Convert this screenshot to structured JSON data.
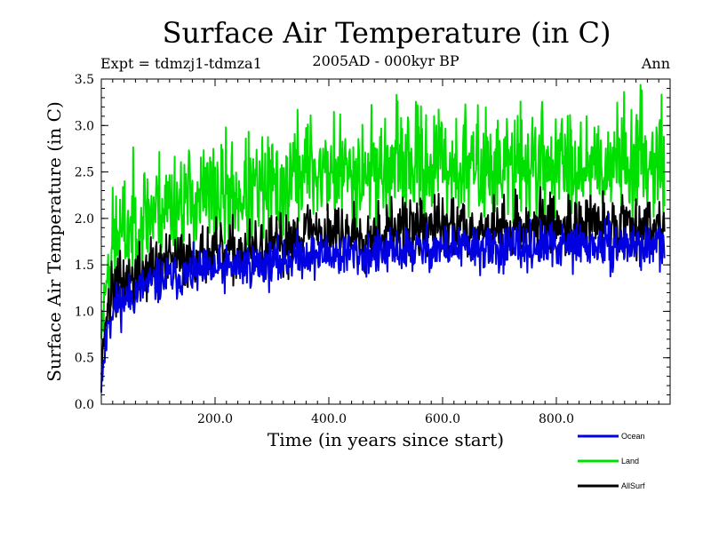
{
  "chart_data": {
    "type": "line",
    "title": "Surface Air Temperature (in C)",
    "subtitle": "2005AD - 000kyr BP",
    "left_annotation": "Expt = tdmzj1-tdmza1",
    "right_annotation": "Ann",
    "xlabel": "Time (in years since start)",
    "ylabel": "Surface Air Temperature (in C)",
    "xlim": [
      0,
      1000
    ],
    "ylim": [
      0.0,
      3.5
    ],
    "x_ticks": [
      200,
      400,
      600,
      800
    ],
    "x_tick_labels": [
      "200.0",
      "400.0",
      "600.0",
      "800.0"
    ],
    "y_ticks": [
      0.0,
      0.5,
      1.0,
      1.5,
      2.0,
      2.5,
      3.0,
      3.5
    ],
    "y_tick_labels": [
      "0.0",
      "0.5",
      "1.0",
      "1.5",
      "2.0",
      "2.5",
      "3.0",
      "3.5"
    ],
    "grid": false,
    "legend_position": "bottom-right",
    "series": [
      {
        "name": "Ocean",
        "color": "#0000e0",
        "x_step": 20,
        "approx_values": [
          0.3,
          1.05,
          1.12,
          1.2,
          1.28,
          1.32,
          1.36,
          1.38,
          1.4,
          1.42,
          1.44,
          1.46,
          1.48,
          1.5,
          1.5,
          1.52,
          1.53,
          1.6,
          1.62,
          1.6,
          1.62,
          1.6,
          1.62,
          1.6,
          1.62,
          1.62,
          1.65,
          1.66,
          1.66,
          1.68,
          1.68,
          1.7,
          1.68,
          1.68,
          1.66,
          1.67,
          1.68,
          1.68,
          1.69,
          1.7,
          1.7,
          1.7,
          1.72,
          1.7,
          1.7,
          1.7,
          1.72,
          1.72,
          1.7,
          1.7
        ],
        "noise_amplitude": 0.12
      },
      {
        "name": "Land",
        "color": "#00e000",
        "x_step": 20,
        "approx_values": [
          0.8,
          1.7,
          1.85,
          1.95,
          2.05,
          2.12,
          2.15,
          2.18,
          2.2,
          2.22,
          2.22,
          2.24,
          2.25,
          2.25,
          2.28,
          2.3,
          2.3,
          2.5,
          2.55,
          2.5,
          2.52,
          2.48,
          2.5,
          2.5,
          2.55,
          2.52,
          2.55,
          2.58,
          2.58,
          2.6,
          2.58,
          2.58,
          2.55,
          2.55,
          2.52,
          2.55,
          2.55,
          2.58,
          2.6,
          2.6,
          2.6,
          2.58,
          2.62,
          2.6,
          2.6,
          2.62,
          2.65,
          2.65,
          2.68,
          2.66
        ],
        "noise_amplitude": 0.3
      },
      {
        "name": "AllSurf",
        "color": "#000000",
        "x_step": 20,
        "approx_values": [
          0.5,
          1.25,
          1.32,
          1.38,
          1.45,
          1.5,
          1.52,
          1.55,
          1.58,
          1.6,
          1.6,
          1.62,
          1.63,
          1.64,
          1.66,
          1.68,
          1.68,
          1.85,
          1.88,
          1.85,
          1.86,
          1.84,
          1.85,
          1.84,
          1.86,
          1.86,
          1.88,
          1.9,
          1.9,
          1.92,
          1.9,
          1.92,
          1.9,
          1.9,
          1.88,
          1.9,
          1.9,
          1.92,
          1.92,
          1.93,
          1.93,
          1.92,
          1.95,
          1.93,
          1.93,
          1.94,
          1.96,
          1.96,
          1.95,
          1.95
        ],
        "noise_amplitude": 0.16
      }
    ]
  }
}
